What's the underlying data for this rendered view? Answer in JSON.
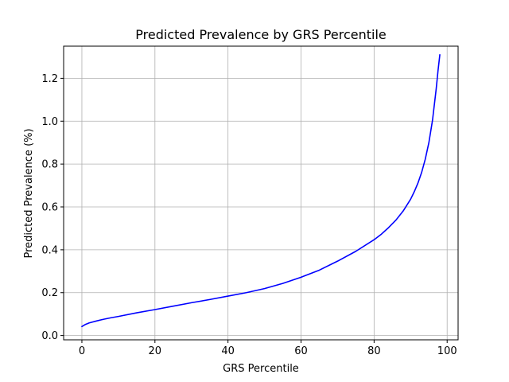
{
  "chart_data": {
    "type": "line",
    "title": "Predicted Prevalence by GRS Percentile",
    "xlabel": "GRS Percentile",
    "ylabel": "Predicted Prevalence (%)",
    "xlim": [
      -5,
      103
    ],
    "ylim": [
      -0.02,
      1.35
    ],
    "xticks": [
      0,
      20,
      40,
      60,
      80,
      100
    ],
    "xtick_labels": [
      "0",
      "20",
      "40",
      "60",
      "80",
      "100"
    ],
    "yticks": [
      0.0,
      0.2,
      0.4,
      0.6,
      0.8,
      1.0,
      1.2
    ],
    "ytick_labels": [
      "0.0",
      "0.2",
      "0.4",
      "0.6",
      "0.8",
      "1.0",
      "1.2"
    ],
    "grid": true,
    "series": [
      {
        "color": "#0000ff",
        "x": [
          0,
          1,
          2,
          4,
          6,
          8,
          10,
          15,
          20,
          25,
          30,
          35,
          40,
          45,
          50,
          55,
          60,
          65,
          70,
          75,
          80,
          82,
          84,
          86,
          88,
          90,
          91,
          92,
          93,
          94,
          95,
          96,
          97,
          97.5,
          98
        ],
        "y": [
          0.042,
          0.052,
          0.059,
          0.068,
          0.076,
          0.083,
          0.089,
          0.106,
          0.121,
          0.137,
          0.153,
          0.168,
          0.184,
          0.2,
          0.219,
          0.243,
          0.272,
          0.305,
          0.347,
          0.393,
          0.447,
          0.473,
          0.504,
          0.539,
          0.582,
          0.636,
          0.671,
          0.711,
          0.76,
          0.822,
          0.9,
          1.005,
          1.15,
          1.235,
          1.31
        ]
      }
    ]
  }
}
